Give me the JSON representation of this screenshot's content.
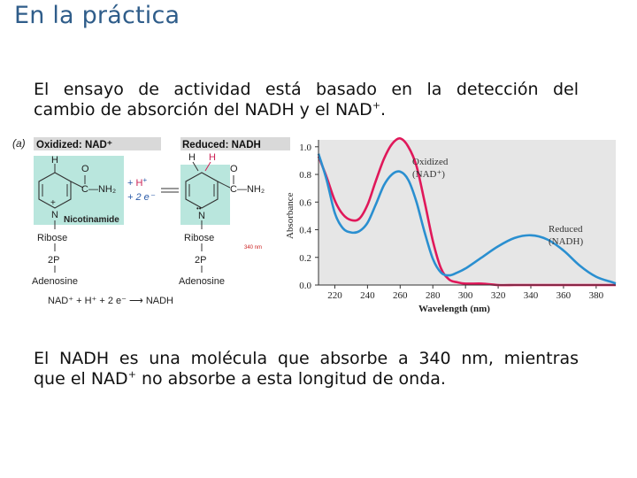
{
  "slide": {
    "title": "En la práctica"
  },
  "intro": {
    "line1": "El ensayo de actividad está basado en la detección del",
    "line2_a": "cambio de absorción del NADH y el NAD",
    "line2_sup": "+",
    "line2_b": "."
  },
  "figure": {
    "panel_label": "(a)",
    "oxidized": {
      "label": "Oxidized: NAD⁺",
      "ring_h": "H",
      "group": "C—NH₂",
      "oxygen": "O",
      "n_charge": "+",
      "n_label": "N",
      "nicotinamide_label": "Nicotinamide",
      "ribose": "Ribose",
      "phosphate": "2P",
      "adenosine": "Adenosine"
    },
    "reagents": {
      "hplus_h": "H",
      "hplus_sup": "+",
      "electrons": "+ 2 e⁻"
    },
    "reduced": {
      "label": "Reduced: NADH",
      "h1": "H",
      "h2": "H",
      "group": "C—NH₂",
      "oxygen": "O",
      "n_label": "N",
      "n_dots": "••",
      "ribose": "Ribose",
      "phosphate": "2P",
      "adenosine": "Adenosine",
      "absorb_note": "340 nm"
    },
    "equation": "NAD⁺ + H⁺ + 2 e⁻ ⟶ NADH",
    "colors": {
      "ring_fill": "#b9e6dd",
      "oxidized_curve": "#e0185a",
      "reduced_curve": "#2a8fd0",
      "plot_bg": "#e6e6e6",
      "label_bar": "#d9d9d9",
      "hydrogen": "#cc2255"
    }
  },
  "chart_data": {
    "type": "line",
    "xlabel": "Wavelength (nm)",
    "ylabel": "Absorbance",
    "xlim": [
      210,
      392
    ],
    "ylim": [
      0,
      1.05
    ],
    "xticks": [
      220,
      240,
      260,
      280,
      300,
      320,
      340,
      360,
      380
    ],
    "yticks": [
      "0.0",
      "0.2",
      "0.4",
      "0.6",
      "0.8",
      "1.0"
    ],
    "grid": false,
    "series": [
      {
        "name": "Oxidized (NAD⁺)",
        "label_line1": "Oxidized",
        "label_line2": "(NAD⁺)",
        "color": "#e0185a",
        "x": [
          210,
          215,
          220,
          225,
          230,
          235,
          240,
          245,
          250,
          255,
          260,
          265,
          270,
          275,
          280,
          285,
          290,
          295,
          300,
          310,
          320,
          330,
          340,
          360,
          380,
          392
        ],
        "y": [
          0.93,
          0.78,
          0.61,
          0.51,
          0.47,
          0.48,
          0.58,
          0.75,
          0.91,
          1.02,
          1.06,
          1.0,
          0.86,
          0.6,
          0.32,
          0.12,
          0.04,
          0.02,
          0.01,
          0.01,
          0.0,
          0.0,
          0.0,
          0.0,
          0.0,
          0.0
        ]
      },
      {
        "name": "Reduced (NADH)",
        "label_line1": "Reduced",
        "label_line2": "(NADH)",
        "color": "#2a8fd0",
        "x": [
          210,
          215,
          220,
          225,
          230,
          235,
          240,
          245,
          250,
          255,
          260,
          265,
          270,
          275,
          280,
          285,
          290,
          295,
          300,
          310,
          320,
          330,
          340,
          350,
          360,
          370,
          380,
          390,
          392
        ],
        "y": [
          0.95,
          0.76,
          0.52,
          0.41,
          0.38,
          0.39,
          0.45,
          0.58,
          0.72,
          0.8,
          0.82,
          0.76,
          0.6,
          0.38,
          0.19,
          0.09,
          0.07,
          0.09,
          0.12,
          0.2,
          0.28,
          0.34,
          0.36,
          0.33,
          0.25,
          0.14,
          0.06,
          0.02,
          0.01
        ]
      }
    ]
  },
  "outro": {
    "line1": "El NADH es una molécula que absorbe a 340 nm, mientras",
    "line2_a": "que el NAD",
    "line2_sup": "+",
    "line2_b": " no absorbe a esta longitud de onda."
  }
}
